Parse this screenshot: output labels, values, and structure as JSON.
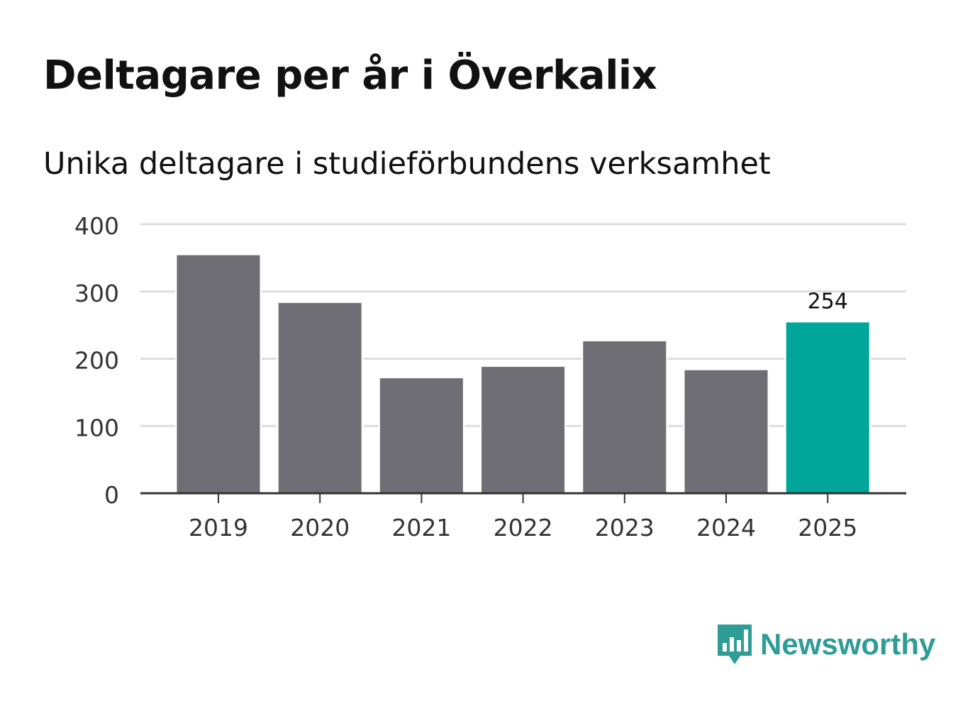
{
  "header": {
    "title": "Deltagare per år i Överkalix",
    "subtitle": "Unika deltagare i studieförbundens verksamhet"
  },
  "chart_data": {
    "type": "bar",
    "title": "Deltagare per år i Överkalix",
    "subtitle": "Unika deltagare i studieförbundens verksamhet",
    "categories": [
      "2019",
      "2020",
      "2021",
      "2022",
      "2023",
      "2024",
      "2025"
    ],
    "values": [
      354,
      283,
      171,
      188,
      226,
      183,
      254
    ],
    "highlight_index": 6,
    "highlight_label": "254",
    "ylim": [
      0,
      400
    ],
    "yticks": [
      0,
      100,
      200,
      300,
      400
    ],
    "xlabel": "",
    "ylabel": "",
    "grid": true,
    "colors": {
      "bar": "#6f6e74",
      "highlight": "#00a699",
      "grid": "#dddddd",
      "axis": "#333333",
      "tick_text": "#333333"
    }
  },
  "branding": {
    "logo_text": "Newsworthy",
    "logo_icon": "bar-chart-speech-bubble-icon",
    "color": "#2f9c96"
  }
}
